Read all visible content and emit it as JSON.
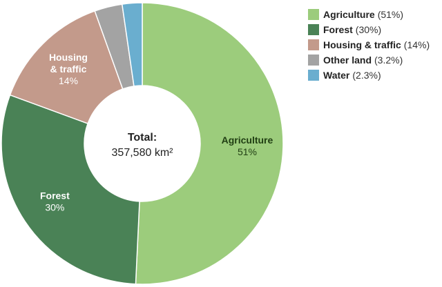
{
  "chart_data": {
    "type": "pie",
    "subtype": "donut",
    "center_title": "Total:",
    "center_value": "357,580 km²",
    "categories": [
      "Agriculture",
      "Forest",
      "Housing & traffic",
      "Other land",
      "Water"
    ],
    "values": [
      51,
      30,
      14,
      3.2,
      2.3
    ],
    "value_labels": [
      "51%",
      "30%",
      "14%",
      "3.2%",
      "2.3%"
    ],
    "legend_pct_labels": [
      "(51%)",
      "(30%)",
      "(14%)",
      "(3.2%)",
      "(2.3%)"
    ],
    "colors": [
      "#9ccc7c",
      "#4a8256",
      "#c39a8b",
      "#a3a3a3",
      "#6aaecf"
    ],
    "slice_name_labels": [
      "Agriculture",
      "Forest",
      "Housing\n& traffic",
      "",
      ""
    ],
    "slice_label_colors": [
      "#1f3d12",
      "#ffffff",
      "#ffffff",
      "#ffffff",
      "#ffffff"
    ],
    "legend_position": "top-right"
  }
}
